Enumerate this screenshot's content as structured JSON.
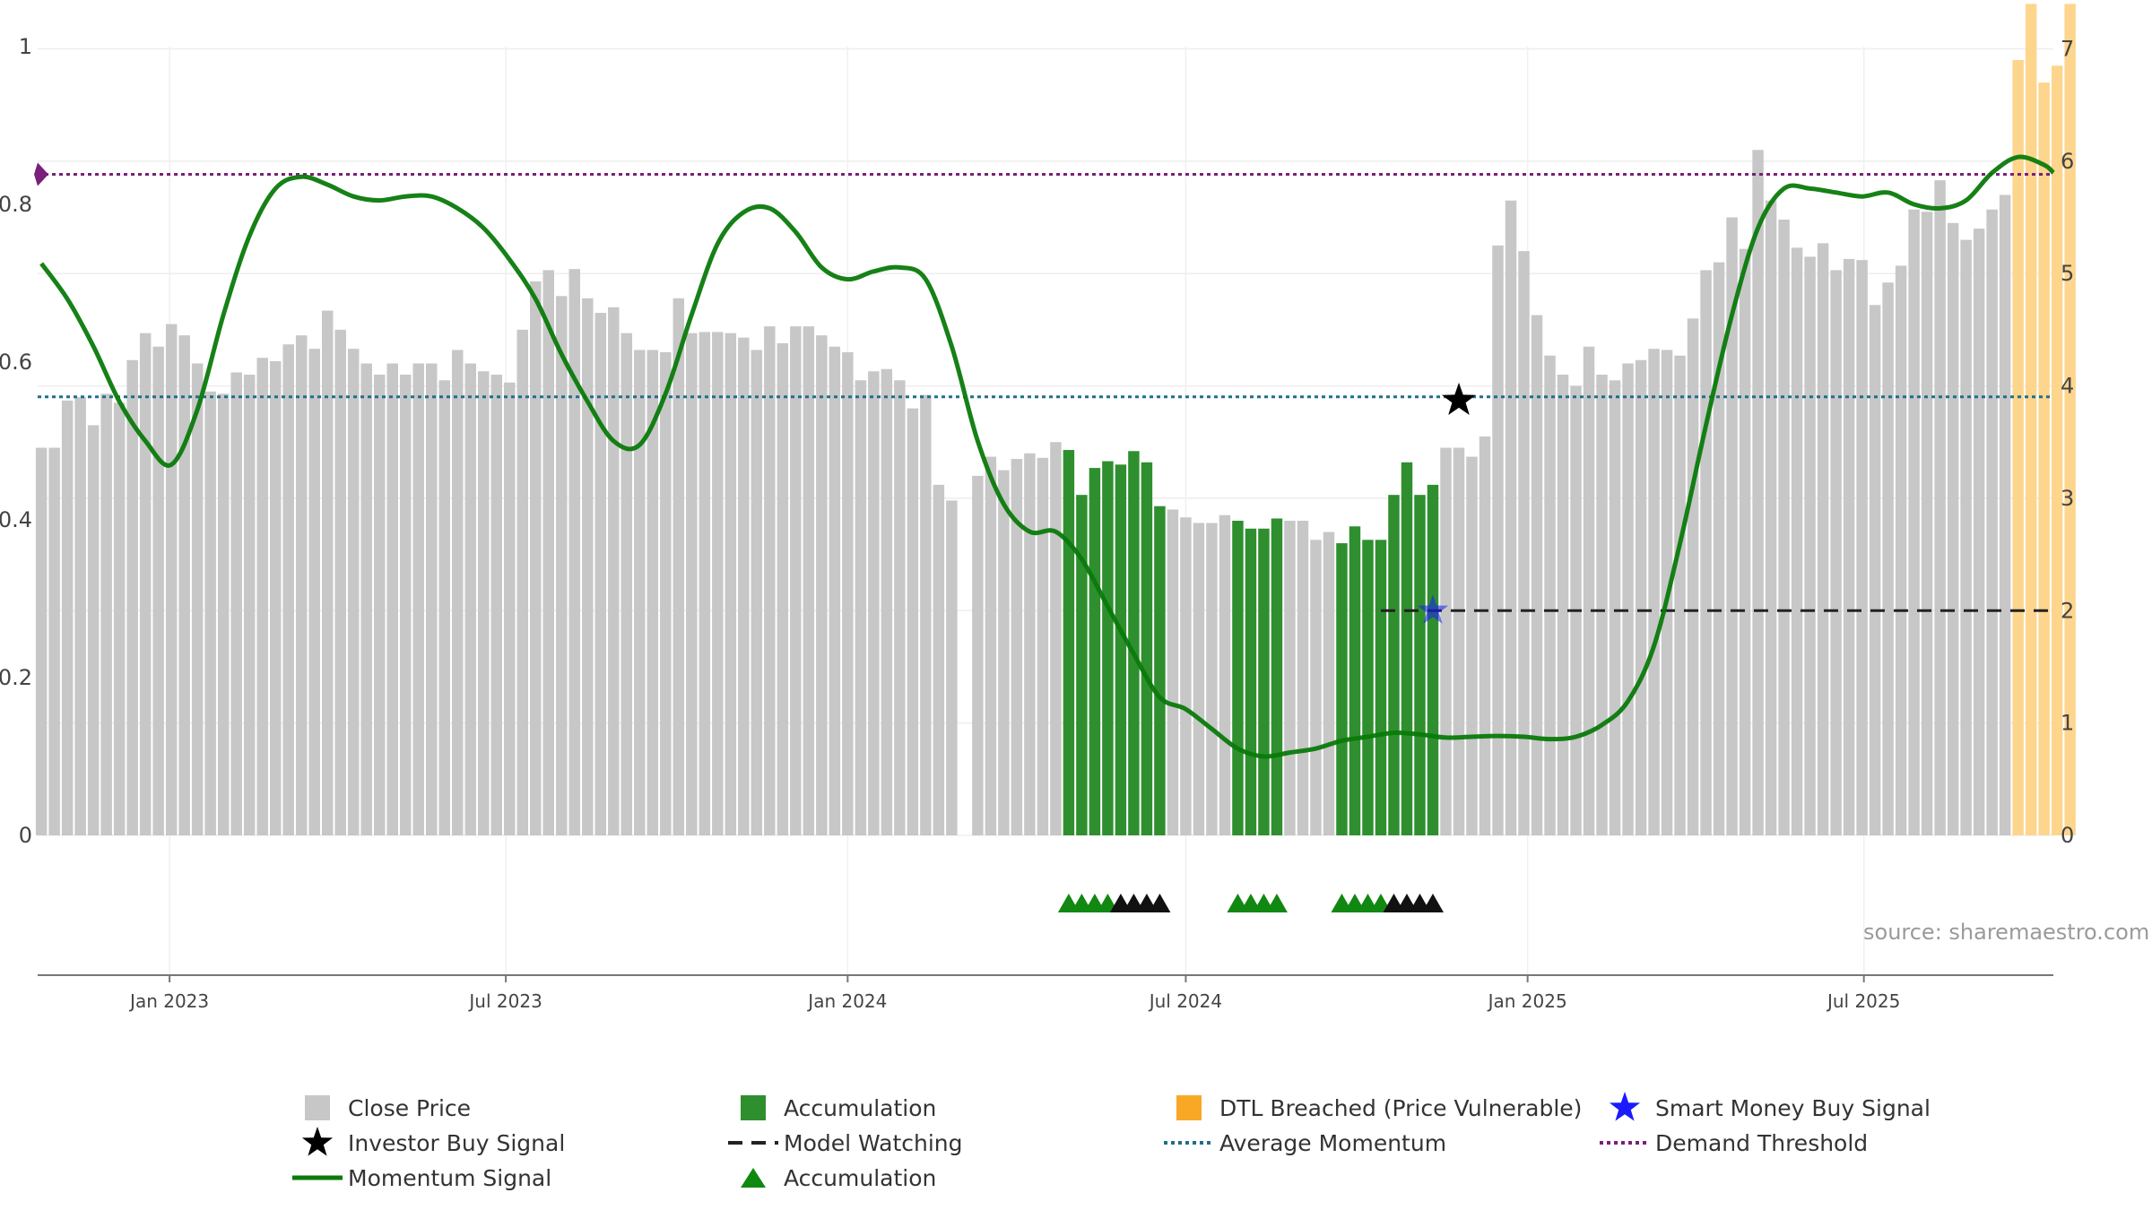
{
  "chart_data": {
    "type": "bar",
    "title": "",
    "xlabel": "",
    "ylabel": "",
    "x_range": [
      "2022-10-22",
      "2025-10-11"
    ],
    "x_ticks": [
      {
        "date": "2023-01-01",
        "label": "Jan 2023"
      },
      {
        "date": "2023-07-01",
        "label": "Jul 2023"
      },
      {
        "date": "2024-01-01",
        "label": "Jan 2024"
      },
      {
        "date": "2024-07-01",
        "label": "Jul 2024"
      },
      {
        "date": "2025-01-01",
        "label": "Jan 2025"
      },
      {
        "date": "2025-07-01",
        "label": "Jul 2025"
      }
    ],
    "y_left": {
      "range": [
        0,
        1.0
      ],
      "ticks": [
        0,
        0.2,
        0.4,
        0.6,
        0.8,
        1
      ],
      "tick_labels": [
        "0",
        "0.2",
        "0.4",
        "0.6",
        "0.8",
        "1"
      ]
    },
    "y_right": {
      "range": [
        0,
        7.0
      ],
      "ticks": [
        0,
        1,
        2,
        3,
        4,
        5,
        6,
        7
      ],
      "tick_labels": [
        "0",
        "1",
        "2",
        "3",
        "4",
        "5",
        "6",
        "7"
      ]
    },
    "grid": true,
    "legend_position": "bottom",
    "bar_week_start": "2022-10-24",
    "close_price": [
      3.45,
      3.45,
      3.87,
      3.9,
      3.65,
      3.93,
      3.85,
      4.23,
      4.47,
      4.35,
      4.55,
      4.45,
      4.2,
      3.95,
      3.93,
      4.12,
      4.1,
      4.25,
      4.22,
      4.37,
      4.45,
      4.33,
      4.67,
      4.5,
      4.33,
      4.2,
      4.1,
      4.2,
      4.1,
      4.2,
      4.2,
      4.05,
      4.32,
      4.2,
      4.13,
      4.1,
      4.03,
      4.5,
      4.93,
      5.03,
      4.8,
      5.04,
      4.78,
      4.65,
      4.7,
      4.47,
      4.32,
      4.32,
      4.3,
      4.78,
      4.47,
      4.48,
      4.48,
      4.47,
      4.43,
      4.32,
      4.53,
      4.38,
      4.53,
      4.53,
      4.45,
      4.35,
      4.3,
      4.05,
      4.13,
      4.15,
      4.05,
      3.8,
      3.92,
      3.12,
      2.98,
      null,
      3.2,
      3.37,
      3.25,
      3.35,
      3.4,
      3.36,
      3.5,
      3.43,
      3.03,
      3.27,
      3.33,
      3.3,
      3.42,
      3.32,
      2.93,
      2.9,
      2.83,
      2.78,
      2.78,
      2.85,
      2.8,
      2.73,
      2.73,
      2.82,
      2.8,
      2.8,
      2.63,
      2.7,
      2.6,
      2.75,
      2.63,
      2.63,
      3.03,
      3.32,
      3.03,
      3.12,
      3.45,
      3.45,
      3.37,
      3.55,
      5.25,
      5.65,
      5.2,
      4.63,
      4.27,
      4.1,
      4.0,
      4.35,
      4.1,
      4.05,
      4.2,
      4.23,
      4.33,
      4.32,
      4.27,
      4.6,
      5.03,
      5.1,
      5.5,
      5.22,
      6.1,
      5.65,
      5.48,
      5.23,
      5.15,
      5.27,
      5.03,
      5.13,
      5.12,
      4.72,
      4.92,
      5.07,
      5.57,
      5.55,
      5.83,
      5.45,
      5.3,
      5.4,
      5.57,
      5.7,
      6.9,
      7.4,
      6.7,
      6.85,
      7.4
    ],
    "close_price_null_note": "",
    "bar_colors": {
      "close_price": "#c7c7c7",
      "accumulation": "#2f8f2f",
      "dtl_breached": "#fdd58d"
    },
    "accumulation_bars": {
      "ranges_index": [
        [
          79,
          86
        ],
        [
          92,
          95
        ],
        [
          100,
          107
        ]
      ]
    },
    "dtl_breached_bars": {
      "range_index": [
        152,
        156
      ]
    },
    "momentum_signal": {
      "color": "#0a7a0a",
      "axis": "left",
      "points": [
        [
          "2022-10-24",
          0.725
        ],
        [
          "2022-11-07",
          0.68
        ],
        [
          "2022-11-21",
          0.62
        ],
        [
          "2022-12-05",
          0.55
        ],
        [
          "2022-12-19",
          0.5
        ],
        [
          "2023-01-02",
          0.47
        ],
        [
          "2023-01-16",
          0.54
        ],
        [
          "2023-01-30",
          0.66
        ],
        [
          "2023-02-13",
          0.76
        ],
        [
          "2023-02-27",
          0.82
        ],
        [
          "2023-03-13",
          0.835
        ],
        [
          "2023-03-27",
          0.825
        ],
        [
          "2023-04-10",
          0.81
        ],
        [
          "2023-04-24",
          0.805
        ],
        [
          "2023-05-08",
          0.81
        ],
        [
          "2023-05-22",
          0.81
        ],
        [
          "2023-06-05",
          0.795
        ],
        [
          "2023-06-19",
          0.77
        ],
        [
          "2023-07-03",
          0.73
        ],
        [
          "2023-07-17",
          0.68
        ],
        [
          "2023-07-31",
          0.61
        ],
        [
          "2023-08-14",
          0.55
        ],
        [
          "2023-08-28",
          0.5
        ],
        [
          "2023-09-11",
          0.495
        ],
        [
          "2023-09-25",
          0.56
        ],
        [
          "2023-10-09",
          0.66
        ],
        [
          "2023-10-23",
          0.75
        ],
        [
          "2023-11-06",
          0.79
        ],
        [
          "2023-11-20",
          0.795
        ],
        [
          "2023-12-04",
          0.765
        ],
        [
          "2023-12-18",
          0.72
        ],
        [
          "2024-01-01",
          0.705
        ],
        [
          "2024-01-15",
          0.715
        ],
        [
          "2024-01-29",
          0.72
        ],
        [
          "2024-02-12",
          0.705
        ],
        [
          "2024-02-26",
          0.62
        ],
        [
          "2024-03-11",
          0.5
        ],
        [
          "2024-03-25",
          0.42
        ],
        [
          "2024-04-08",
          0.385
        ],
        [
          "2024-04-22",
          0.385
        ],
        [
          "2024-05-06",
          0.35
        ],
        [
          "2024-05-20",
          0.29
        ],
        [
          "2024-06-03",
          0.23
        ],
        [
          "2024-06-17",
          0.175
        ],
        [
          "2024-07-01",
          0.16
        ],
        [
          "2024-07-15",
          0.135
        ],
        [
          "2024-07-29",
          0.11
        ],
        [
          "2024-08-12",
          0.1
        ],
        [
          "2024-08-26",
          0.105
        ],
        [
          "2024-09-09",
          0.11
        ],
        [
          "2024-09-23",
          0.12
        ],
        [
          "2024-10-07",
          0.125
        ],
        [
          "2024-10-21",
          0.13
        ],
        [
          "2024-11-04",
          0.128
        ],
        [
          "2024-11-18",
          0.124
        ],
        [
          "2024-12-02",
          0.125
        ],
        [
          "2024-12-16",
          0.126
        ],
        [
          "2024-12-30",
          0.125
        ],
        [
          "2025-01-13",
          0.122
        ],
        [
          "2025-01-27",
          0.125
        ],
        [
          "2025-02-10",
          0.14
        ],
        [
          "2025-02-24",
          0.17
        ],
        [
          "2025-03-10",
          0.24
        ],
        [
          "2025-03-24",
          0.37
        ],
        [
          "2025-04-07",
          0.52
        ],
        [
          "2025-04-21",
          0.66
        ],
        [
          "2025-05-05",
          0.77
        ],
        [
          "2025-05-19",
          0.82
        ],
        [
          "2025-06-02",
          0.82
        ],
        [
          "2025-06-16",
          0.815
        ],
        [
          "2025-06-30",
          0.81
        ],
        [
          "2025-07-14",
          0.815
        ],
        [
          "2025-07-28",
          0.8
        ],
        [
          "2025-08-11",
          0.795
        ],
        [
          "2025-08-25",
          0.805
        ],
        [
          "2025-09-08",
          0.84
        ],
        [
          "2025-09-22",
          0.86
        ],
        [
          "2025-10-06",
          0.85
        ],
        [
          "2025-10-11",
          0.84
        ]
      ]
    },
    "model_watching": {
      "value": 2.0,
      "start": "2024-10-14",
      "end": "2025-10-11",
      "color": "#222222",
      "axis": "right"
    },
    "average_momentum": {
      "value": 0.556,
      "color": "#1f6e8c",
      "axis": "left"
    },
    "demand_threshold": {
      "value": 0.838,
      "color": "#7a1f7a",
      "axis": "left"
    },
    "investor_buy_signal": {
      "date": "2024-11-25",
      "value": 3.87,
      "axis": "right",
      "color": "#000000"
    },
    "smart_money_buy_signal": {
      "date": "2024-11-11",
      "value": 2.0,
      "axis": "right",
      "color": "#1a1aff"
    },
    "accumulation_triangles": [
      {
        "range_index": [
          79,
          82
        ],
        "color": "#118811"
      },
      {
        "range_index": [
          83,
          86
        ],
        "color": "#111111"
      },
      {
        "range_index": [
          92,
          95
        ],
        "color": "#118811"
      },
      {
        "range_index": [
          100,
          103
        ],
        "color": "#118811"
      },
      {
        "range_index": [
          104,
          107
        ],
        "color": "#111111"
      }
    ]
  },
  "legend": {
    "close_price": "Close Price",
    "accumulation": "Accumulation",
    "dtl_breached": "DTL Breached (Price Vulnerable)",
    "smart_money": "Smart Money Buy Signal",
    "investor_buy": "Investor Buy Signal",
    "model_watching": "Model Watching",
    "average_momentum": "Average Momentum",
    "demand_threshold": "Demand Threshold",
    "momentum_signal": "Momentum Signal",
    "accumulation_marker": "Accumulation"
  },
  "source": "source: sharemaestro.com"
}
